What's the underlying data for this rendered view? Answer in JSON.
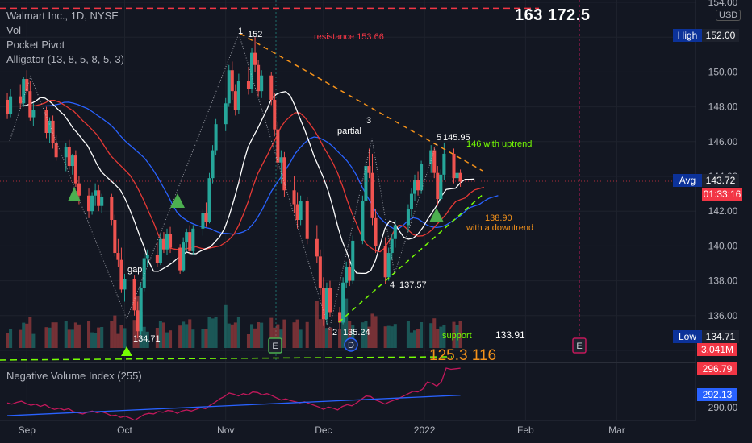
{
  "header": {
    "symbol_title": "Walmart Inc., 1D, NYSE",
    "top_numbers": "163  172.5",
    "currency": "USD"
  },
  "legend": [
    "Vol",
    "Pocket Pivot",
    "Alligator (13, 8, 5, 8, 5, 3)"
  ],
  "nvi_title": "Negative Volume Index (255)",
  "scale": {
    "price_ticks": [
      "134.00",
      "136.00",
      "138.00",
      "140.00",
      "142.00",
      "144.00",
      "146.00",
      "148.00",
      "150.00",
      "152.00",
      "154.00"
    ],
    "nvi_ticks": [
      "290.00"
    ]
  },
  "right_tags": {
    "high_label": "High",
    "high_value": "152.00",
    "avg_label": "Avg",
    "avg_value": "143.72",
    "countdown": "01:33:16",
    "low_label": "Low",
    "low_value": "134.71",
    "volume": "3.041M",
    "nvi_value": "296.79",
    "nvi_ma_value": "292.13"
  },
  "time_axis": [
    "Sep",
    "Oct",
    "Nov",
    "Dec",
    "2022",
    "Feb",
    "Mar"
  ],
  "annotations": {
    "resistance": "resistance  153.66",
    "point1": "1",
    "point1_val": "152",
    "partial": "partial",
    "point3": "3",
    "point5": "5",
    "point5_val": "145.95",
    "uptrend": "146 with uptrend",
    "downtrend_val": "138.90",
    "downtrend": "with a downtrend",
    "gap": "gap",
    "low_oct": "134.71",
    "point2": "2",
    "point2_val": "135.24",
    "point4": "4",
    "point4_val": "137.57",
    "support": "support",
    "support_val": "133.91",
    "bottom_numbers": "125.3  116"
  },
  "markers": {
    "earnings": "E",
    "dividend": "D"
  },
  "colors": {
    "background": "#131722",
    "up": "#26a69a",
    "down": "#ef5350",
    "resistance": "#f23645",
    "trend": "#f7931a",
    "support": "#76ff03",
    "alligator_jaw": "#2962ff",
    "alligator_teeth": "#e53935",
    "alligator_lips": "#ffffff",
    "nvi": "#c2185b",
    "nvi_ma": "#2962ff"
  },
  "chart_data": {
    "type": "candlestick",
    "price_range": [
      134,
      154
    ],
    "x_range": [
      "2021-08-25",
      "2022-03-14"
    ],
    "candles": [
      [
        "2021-08-26",
        148.4,
        148.8,
        147.3,
        147.6
      ],
      [
        "2021-08-27",
        147.6,
        149.0,
        147.4,
        148.6
      ],
      [
        "2021-08-30",
        148.6,
        149.3,
        147.9,
        148.2
      ],
      [
        "2021-08-31",
        148.2,
        149.7,
        148.0,
        149.6
      ],
      [
        "2021-09-01",
        149.6,
        150.1,
        148.7,
        148.9
      ],
      [
        "2021-09-02",
        148.9,
        149.5,
        147.2,
        147.4
      ],
      [
        "2021-09-03",
        147.4,
        148.2,
        146.9,
        147.8
      ],
      [
        "2021-09-07",
        147.8,
        148.0,
        146.2,
        146.5
      ],
      [
        "2021-09-08",
        146.5,
        147.4,
        145.9,
        147.2
      ],
      [
        "2021-09-09",
        147.2,
        147.5,
        145.6,
        145.9
      ],
      [
        "2021-09-10",
        145.9,
        146.4,
        144.9,
        145.1
      ],
      [
        "2021-09-13",
        145.1,
        145.9,
        144.3,
        145.7
      ],
      [
        "2021-09-14",
        145.7,
        146.1,
        144.4,
        144.6
      ],
      [
        "2021-09-15",
        144.6,
        145.3,
        144.1,
        145.2
      ],
      [
        "2021-09-16",
        145.2,
        145.5,
        143.4,
        143.6
      ],
      [
        "2021-09-17",
        143.6,
        144.0,
        142.4,
        142.9
      ],
      [
        "2021-09-20",
        142.9,
        143.3,
        141.6,
        142.0
      ],
      [
        "2021-09-21",
        142.0,
        143.1,
        141.8,
        142.9
      ],
      [
        "2021-09-22",
        142.9,
        143.6,
        142.3,
        143.2
      ],
      [
        "2021-09-23",
        143.2,
        143.5,
        142.0,
        142.3
      ],
      [
        "2021-09-24",
        142.3,
        143.0,
        141.9,
        142.8
      ],
      [
        "2021-09-27",
        142.8,
        143.0,
        141.2,
        141.5
      ],
      [
        "2021-09-28",
        141.5,
        141.8,
        139.4,
        139.6
      ],
      [
        "2021-09-29",
        139.6,
        140.4,
        138.8,
        139.2
      ],
      [
        "2021-09-30",
        139.2,
        139.9,
        137.3,
        137.5
      ],
      [
        "2021-10-01",
        137.5,
        138.4,
        136.8,
        138.1
      ],
      [
        "2021-10-04",
        138.1,
        138.3,
        136.0,
        136.3
      ],
      [
        "2021-10-05",
        136.3,
        136.8,
        134.7,
        135.1
      ],
      [
        "2021-10-06",
        135.1,
        137.9,
        134.9,
        137.6
      ],
      [
        "2021-10-07",
        137.6,
        139.6,
        137.4,
        139.3
      ],
      [
        "2021-10-08",
        139.3,
        139.8,
        138.8,
        139.5
      ],
      [
        "2021-10-11",
        139.5,
        140.2,
        138.8,
        139.0
      ],
      [
        "2021-10-12",
        139.0,
        140.7,
        138.9,
        140.4
      ],
      [
        "2021-10-13",
        140.4,
        140.8,
        139.6,
        139.8
      ],
      [
        "2021-10-14",
        139.8,
        141.0,
        139.5,
        140.7
      ],
      [
        "2021-10-15",
        140.7,
        141.1,
        139.6,
        139.9
      ],
      [
        "2021-10-18",
        139.9,
        140.1,
        138.4,
        138.6
      ],
      [
        "2021-10-19",
        138.6,
        140.5,
        138.5,
        140.2
      ],
      [
        "2021-10-20",
        140.2,
        141.0,
        139.7,
        140.8
      ],
      [
        "2021-10-21",
        140.8,
        141.2,
        139.5,
        139.7
      ],
      [
        "2021-10-22",
        139.7,
        141.2,
        139.5,
        141.0
      ],
      [
        "2021-10-25",
        141.0,
        142.1,
        140.6,
        141.9
      ],
      [
        "2021-10-26",
        141.9,
        142.5,
        141.1,
        141.4
      ],
      [
        "2021-10-27",
        141.4,
        144.2,
        141.3,
        143.9
      ],
      [
        "2021-10-28",
        143.9,
        145.8,
        143.6,
        145.5
      ],
      [
        "2021-10-29",
        145.5,
        147.3,
        145.2,
        147.0
      ],
      [
        "2021-11-01",
        147.0,
        148.5,
        146.6,
        148.2
      ],
      [
        "2021-11-02",
        148.2,
        150.4,
        148.0,
        150.1
      ],
      [
        "2021-11-03",
        150.1,
        150.6,
        148.4,
        148.9
      ],
      [
        "2021-11-04",
        148.9,
        149.3,
        147.5,
        147.8
      ],
      [
        "2021-11-05",
        147.8,
        149.9,
        147.6,
        149.5
      ],
      [
        "2021-11-08",
        149.5,
        150.3,
        148.7,
        149.0
      ],
      [
        "2021-11-09",
        149.0,
        151.4,
        148.8,
        151.1
      ],
      [
        "2021-11-10",
        151.1,
        152.0,
        150.0,
        150.4
      ],
      [
        "2021-11-11",
        150.4,
        150.7,
        148.6,
        148.9
      ],
      [
        "2021-11-12",
        148.9,
        150.1,
        148.5,
        149.8
      ],
      [
        "2021-11-15",
        149.8,
        150.0,
        148.1,
        148.4
      ],
      [
        "2021-11-16",
        148.4,
        148.8,
        146.3,
        146.7
      ],
      [
        "2021-11-17",
        146.7,
        147.1,
        144.4,
        144.8
      ],
      [
        "2021-11-18",
        144.8,
        145.5,
        143.6,
        145.1
      ],
      [
        "2021-11-19",
        145.1,
        145.4,
        142.8,
        143.2
      ],
      [
        "2021-11-22",
        143.2,
        144.0,
        141.9,
        142.4
      ],
      [
        "2021-11-23",
        142.4,
        143.1,
        141.0,
        141.5
      ],
      [
        "2021-11-24",
        141.5,
        142.9,
        141.2,
        142.6
      ],
      [
        "2021-11-26",
        142.6,
        142.8,
        140.1,
        140.4
      ],
      [
        "2021-11-29",
        140.4,
        141.2,
        139.0,
        139.4
      ],
      [
        "2021-11-30",
        139.4,
        139.8,
        137.2,
        137.6
      ],
      [
        "2021-12-01",
        137.6,
        138.2,
        135.4,
        135.8
      ],
      [
        "2021-12-02",
        135.8,
        137.9,
        135.5,
        137.6
      ],
      [
        "2021-12-03",
        137.6,
        138.0,
        135.9,
        136.2
      ],
      [
        "2021-12-06",
        136.2,
        136.5,
        135.2,
        135.6
      ],
      [
        "2021-12-07",
        135.6,
        138.2,
        135.5,
        137.9
      ],
      [
        "2021-12-08",
        137.9,
        139.1,
        137.6,
        138.8
      ],
      [
        "2021-12-09",
        138.8,
        139.2,
        137.7,
        138.0
      ],
      [
        "2021-12-10",
        138.0,
        140.6,
        137.8,
        140.3
      ],
      [
        "2021-12-13",
        140.3,
        142.9,
        140.1,
        142.6
      ],
      [
        "2021-12-14",
        142.6,
        144.9,
        142.3,
        144.6
      ],
      [
        "2021-12-15",
        144.6,
        145.6,
        143.9,
        144.2
      ],
      [
        "2021-12-16",
        144.2,
        145.3,
        141.2,
        141.6
      ],
      [
        "2021-12-17",
        141.6,
        142.1,
        139.6,
        140.0
      ],
      [
        "2021-12-20",
        140.0,
        140.5,
        137.8,
        138.2
      ],
      [
        "2021-12-21",
        138.2,
        139.9,
        138.0,
        139.6
      ],
      [
        "2021-12-22",
        139.6,
        140.7,
        139.2,
        140.4
      ],
      [
        "2021-12-23",
        140.4,
        141.5,
        139.9,
        141.2
      ],
      [
        "2021-12-27",
        141.2,
        142.4,
        140.8,
        142.1
      ],
      [
        "2021-12-28",
        142.1,
        143.3,
        141.7,
        143.0
      ],
      [
        "2021-12-29",
        143.0,
        144.1,
        142.6,
        143.8
      ],
      [
        "2021-12-30",
        143.8,
        144.3,
        142.9,
        143.2
      ],
      [
        "2021-12-31",
        143.2,
        144.9,
        143.0,
        144.7
      ],
      [
        "2022-01-03",
        144.7,
        145.8,
        144.2,
        145.5
      ],
      [
        "2022-01-04",
        145.5,
        145.7,
        143.9,
        144.2
      ],
      [
        "2022-01-05",
        144.2,
        144.6,
        142.3,
        142.7
      ],
      [
        "2022-01-06",
        142.7,
        144.4,
        142.5,
        144.1
      ],
      [
        "2022-01-07",
        144.1,
        145.95,
        143.8,
        145.3
      ],
      [
        "2022-01-10",
        145.3,
        145.6,
        143.6,
        143.9
      ],
      [
        "2022-01-11",
        143.9,
        144.5,
        143.2,
        144.2
      ],
      [
        "2022-01-12",
        144.2,
        144.4,
        143.4,
        143.7
      ]
    ],
    "nvi": [
      290.8,
      290.6,
      290.9,
      291.1,
      290.7,
      290.4,
      290.6,
      290.2,
      290.5,
      290.0,
      289.7,
      289.9,
      289.6,
      289.8,
      289.3,
      289.1,
      288.9,
      289.2,
      289.4,
      289.1,
      289.3,
      289.0,
      288.6,
      288.7,
      288.3,
      288.5,
      288.2,
      287.8,
      288.3,
      288.8,
      289.0,
      288.9,
      289.3,
      289.2,
      289.5,
      289.4,
      289.0,
      289.4,
      289.6,
      289.4,
      289.7,
      290.0,
      289.8,
      290.4,
      290.9,
      291.5,
      291.9,
      292.5,
      292.3,
      292.0,
      292.4,
      292.2,
      292.7,
      292.6,
      292.2,
      292.4,
      292.1,
      291.7,
      291.3,
      291.5,
      291.2,
      291.0,
      290.8,
      291.0,
      290.7,
      290.4,
      290.1,
      289.7,
      290.1,
      289.9,
      289.6,
      290.2,
      290.5,
      290.3,
      290.8,
      291.4,
      292.0,
      291.9,
      291.3,
      291.0,
      290.6,
      291.0,
      291.3,
      291.6,
      292.0,
      292.4,
      292.8,
      292.7,
      293.2,
      294.4,
      294.2,
      293.7,
      294.5,
      296.8,
      296.6,
      296.7,
      296.79
    ],
    "nvi_ma_value": 292.13,
    "resistance_level": 153.66,
    "support_level": 133.91
  }
}
